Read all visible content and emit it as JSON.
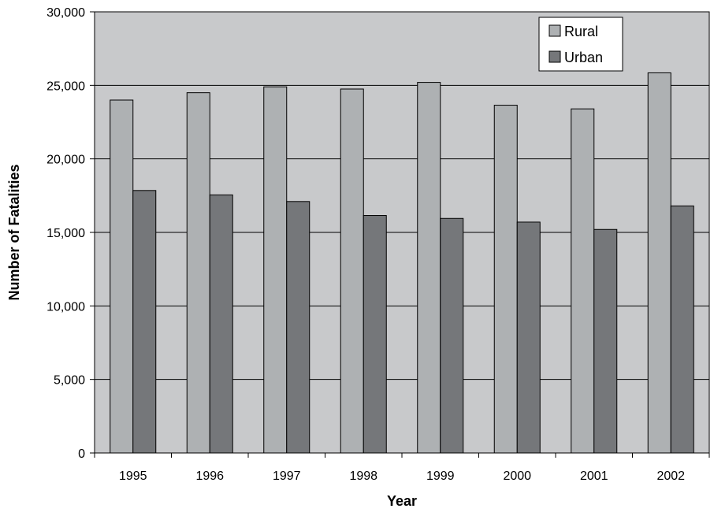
{
  "chart_data": {
    "type": "bar",
    "title": "",
    "xlabel": "Year",
    "ylabel": "Number of Fatalities",
    "categories": [
      "1995",
      "1996",
      "1997",
      "1998",
      "1999",
      "2000",
      "2001",
      "2002"
    ],
    "series": [
      {
        "name": "Rural",
        "values": [
          24000,
          24500,
          24900,
          24750,
          25200,
          23650,
          23400,
          25850
        ],
        "color": "#aeb1b3"
      },
      {
        "name": "Urban",
        "values": [
          17850,
          17550,
          17100,
          16150,
          15950,
          15700,
          15200,
          16800
        ],
        "color": "#75777a"
      }
    ],
    "ylim": [
      0,
      30000
    ],
    "yticks": [
      0,
      5000,
      10000,
      15000,
      20000,
      25000,
      30000
    ],
    "ytick_labels": [
      "0",
      "5,000",
      "10,000",
      "15,000",
      "20,000",
      "25,000",
      "30,000"
    ],
    "grid": true,
    "legend_position": "top-right",
    "plot_background": "#c8c9cb"
  }
}
